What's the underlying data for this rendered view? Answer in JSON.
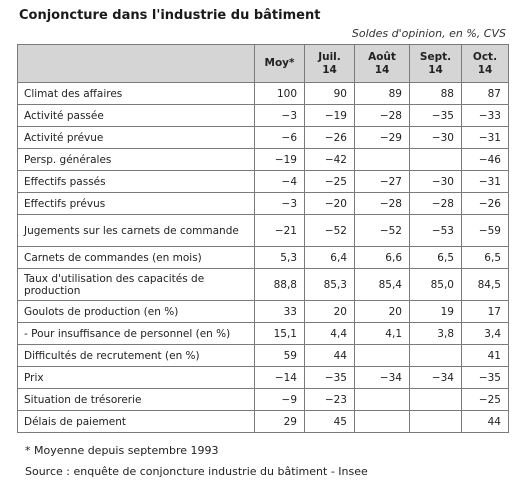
{
  "title": "Conjoncture dans l'industrie du bâtiment",
  "units": "Soldes d'opinion, en %, CVS",
  "table": {
    "columns": [
      [
        "Moy*"
      ],
      [
        "Juil.",
        "14"
      ],
      [
        "Août",
        "14"
      ],
      [
        "Sept.",
        "14"
      ],
      [
        "Oct.",
        "14"
      ]
    ],
    "rows": [
      {
        "label": "Climat des affaires",
        "values": [
          "100",
          "90",
          "89",
          "88",
          "87"
        ]
      },
      {
        "label": "Activité passée",
        "values": [
          "−3",
          "−19",
          "−28",
          "−35",
          "−33"
        ]
      },
      {
        "label": "Activité prévue",
        "values": [
          "−6",
          "−26",
          "−29",
          "−30",
          "−31"
        ]
      },
      {
        "label": "Persp. générales",
        "values": [
          "−19",
          "−42",
          "",
          "",
          "−46"
        ]
      },
      {
        "label": "Effectifs passés",
        "values": [
          "−4",
          "−25",
          "−27",
          "−30",
          "−31"
        ]
      },
      {
        "label": "Effectifs prévus",
        "values": [
          "−3",
          "−20",
          "−28",
          "−28",
          "−26"
        ]
      },
      {
        "label": "Jugements sur les carnets de commande",
        "values": [
          "−21",
          "−52",
          "−52",
          "−53",
          "−59"
        ]
      },
      {
        "label": "Carnets de commandes (en mois)",
        "values": [
          "5,3",
          "6,4",
          "6,6",
          "6,5",
          "6,5"
        ]
      },
      {
        "label": "Taux d'utilisation des capacités de production",
        "values": [
          "88,8",
          "85,3",
          "85,4",
          "85,0",
          "84,5"
        ]
      },
      {
        "label": "Goulots de production (en %)",
        "values": [
          "33",
          "20",
          "20",
          "19",
          "17"
        ]
      },
      {
        "label": "- Pour insuffisance de personnel (en %)",
        "values": [
          "15,1",
          "4,4",
          "4,1",
          "3,8",
          "3,4"
        ]
      },
      {
        "label": "Difficultés de recrutement (en %)",
        "values": [
          "59",
          "44",
          "",
          "",
          "41"
        ]
      },
      {
        "label": "Prix",
        "values": [
          "−14",
          "−35",
          "−34",
          "−34",
          "−35"
        ]
      },
      {
        "label": "Situation de trésorerie",
        "values": [
          "−9",
          "−23",
          "",
          "",
          "−25"
        ]
      },
      {
        "label": "Délais de paiement",
        "values": [
          "29",
          "45",
          "",
          "",
          "44"
        ]
      }
    ]
  },
  "footnote": "* Moyenne depuis septembre 1993",
  "source": "Source : enquête de conjoncture industrie du bâtiment - Insee"
}
